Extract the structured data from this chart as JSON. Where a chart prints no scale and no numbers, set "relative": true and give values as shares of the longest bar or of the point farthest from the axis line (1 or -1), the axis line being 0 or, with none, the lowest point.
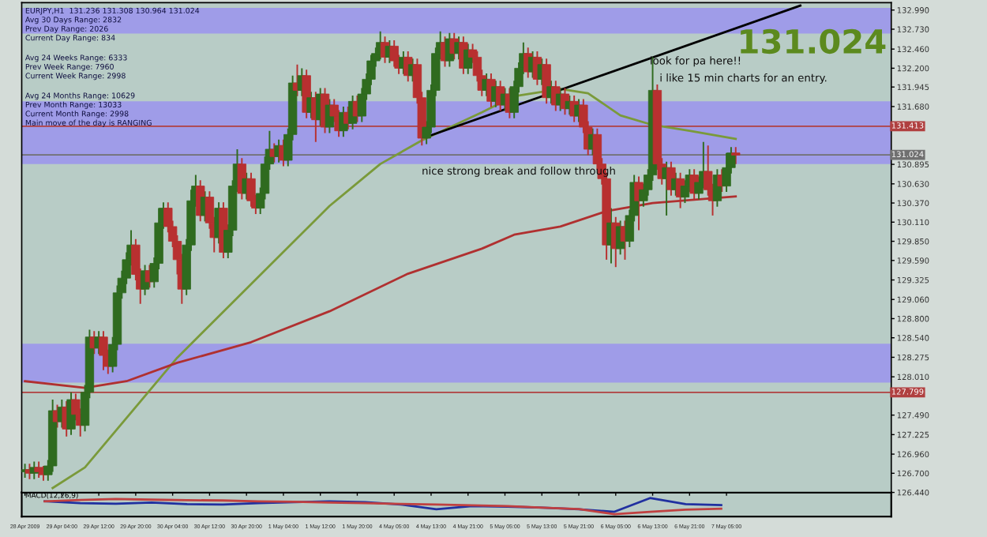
{
  "chart_data": [
    {
      "type": "candlestick",
      "grid": false,
      "ohlc": [
        [
          126.72,
          126.83,
          126.64,
          126.75
        ],
        [
          126.75,
          126.83,
          126.62,
          126.7
        ],
        [
          126.7,
          126.86,
          126.62,
          126.78
        ],
        [
          126.78,
          126.86,
          126.64,
          126.72
        ],
        [
          126.72,
          126.8,
          126.6,
          126.68
        ],
        [
          126.68,
          126.88,
          126.6,
          126.8
        ],
        [
          126.8,
          127.7,
          126.72,
          127.55
        ],
        [
          127.55,
          127.63,
          127.32,
          127.4
        ],
        [
          127.4,
          127.7,
          127.32,
          127.6
        ],
        [
          127.6,
          127.68,
          127.2,
          127.3
        ],
        [
          127.3,
          127.8,
          127.22,
          127.7
        ],
        [
          127.7,
          127.78,
          127.42,
          127.5
        ],
        [
          127.5,
          127.58,
          127.2,
          127.35
        ],
        [
          127.35,
          127.9,
          127.27,
          127.8
        ],
        [
          127.8,
          128.65,
          127.72,
          128.55
        ],
        [
          128.55,
          128.63,
          128.32,
          128.4
        ],
        [
          128.4,
          128.63,
          128.32,
          128.55
        ],
        [
          128.55,
          128.63,
          128.1,
          128.3
        ],
        [
          128.3,
          128.38,
          128.05,
          128.15
        ],
        [
          128.15,
          128.55,
          128.07,
          128.45
        ],
        [
          128.45,
          129.25,
          128.37,
          129.15
        ],
        [
          129.15,
          129.45,
          129.07,
          129.35
        ],
        [
          129.35,
          129.7,
          129.27,
          129.6
        ],
        [
          129.6,
          130.0,
          129.52,
          129.8
        ],
        [
          129.8,
          129.88,
          129.32,
          129.4
        ],
        [
          129.4,
          129.48,
          129.0,
          129.2
        ],
        [
          129.2,
          129.53,
          129.12,
          129.45
        ],
        [
          129.45,
          129.53,
          129.22,
          129.3
        ],
        [
          129.3,
          129.63,
          129.22,
          129.55
        ],
        [
          129.55,
          130.3,
          129.47,
          130.1
        ],
        [
          130.1,
          130.38,
          130.02,
          130.3
        ],
        [
          130.3,
          130.38,
          129.97,
          130.05
        ],
        [
          130.05,
          130.13,
          129.77,
          129.85
        ],
        [
          129.85,
          129.93,
          129.4,
          129.6
        ],
        [
          129.6,
          129.68,
          129.0,
          129.2
        ],
        [
          129.2,
          129.88,
          129.12,
          129.8
        ],
        [
          129.8,
          130.55,
          129.72,
          130.4
        ],
        [
          130.4,
          130.75,
          130.32,
          130.6
        ],
        [
          130.6,
          130.68,
          130.12,
          130.2
        ],
        [
          130.2,
          130.53,
          130.12,
          130.45
        ],
        [
          130.45,
          130.53,
          130.02,
          130.1
        ],
        [
          130.1,
          130.18,
          129.7,
          129.9
        ],
        [
          129.9,
          130.38,
          129.82,
          130.3
        ],
        [
          130.3,
          130.38,
          129.62,
          129.7
        ],
        [
          129.7,
          130.08,
          129.62,
          130.0
        ],
        [
          130.0,
          130.68,
          129.92,
          130.6
        ],
        [
          130.6,
          131.1,
          130.52,
          130.9
        ],
        [
          130.9,
          130.98,
          130.42,
          130.5
        ],
        [
          130.5,
          130.78,
          130.42,
          130.7
        ],
        [
          130.7,
          130.78,
          130.32,
          130.4
        ],
        [
          130.4,
          130.48,
          130.22,
          130.3
        ],
        [
          130.3,
          130.58,
          130.22,
          130.5
        ],
        [
          130.5,
          131.0,
          130.42,
          130.9
        ],
        [
          130.9,
          131.35,
          130.82,
          131.1
        ],
        [
          131.1,
          131.18,
          130.92,
          131.0
        ],
        [
          131.0,
          131.23,
          130.92,
          131.15
        ],
        [
          131.15,
          131.23,
          130.87,
          130.95
        ],
        [
          130.95,
          131.38,
          130.87,
          131.3
        ],
        [
          131.3,
          132.1,
          131.22,
          132.0
        ],
        [
          132.0,
          132.25,
          131.82,
          131.9
        ],
        [
          131.9,
          132.2,
          131.82,
          132.1
        ],
        [
          132.1,
          132.18,
          131.52,
          131.6
        ],
        [
          131.6,
          131.88,
          131.52,
          131.8
        ],
        [
          131.8,
          131.88,
          131.2,
          131.5
        ],
        [
          131.5,
          131.93,
          131.42,
          131.85
        ],
        [
          131.85,
          131.93,
          131.32,
          131.4
        ],
        [
          131.4,
          131.78,
          131.32,
          131.7
        ],
        [
          131.7,
          131.78,
          131.47,
          131.55
        ],
        [
          131.55,
          131.63,
          131.27,
          131.35
        ],
        [
          131.35,
          131.68,
          131.27,
          131.6
        ],
        [
          131.6,
          131.68,
          131.37,
          131.45
        ],
        [
          131.45,
          131.83,
          131.37,
          131.75
        ],
        [
          131.75,
          131.83,
          131.47,
          131.55
        ],
        [
          131.55,
          131.93,
          131.47,
          131.85
        ],
        [
          131.85,
          132.13,
          131.77,
          132.05
        ],
        [
          132.05,
          132.38,
          131.97,
          132.3
        ],
        [
          132.3,
          132.48,
          132.22,
          132.4
        ],
        [
          132.4,
          132.7,
          132.32,
          132.55
        ],
        [
          132.55,
          132.63,
          132.27,
          132.35
        ],
        [
          132.35,
          132.58,
          132.27,
          132.5
        ],
        [
          132.5,
          132.58,
          132.22,
          132.3
        ],
        [
          132.3,
          132.38,
          132.12,
          132.2
        ],
        [
          132.2,
          132.43,
          132.12,
          132.35
        ],
        [
          132.35,
          132.43,
          132.02,
          132.1
        ],
        [
          132.1,
          132.33,
          132.02,
          132.25
        ],
        [
          132.25,
          132.33,
          131.72,
          131.8
        ],
        [
          131.8,
          131.88,
          131.15,
          131.25
        ],
        [
          131.25,
          131.48,
          131.17,
          131.4
        ],
        [
          131.4,
          131.98,
          131.32,
          131.9
        ],
        [
          131.9,
          132.48,
          131.82,
          132.4
        ],
        [
          132.4,
          132.7,
          132.32,
          132.55
        ],
        [
          132.55,
          132.63,
          132.22,
          132.3
        ],
        [
          132.3,
          132.68,
          132.22,
          132.6
        ],
        [
          132.6,
          132.68,
          132.32,
          132.4
        ],
        [
          132.4,
          132.63,
          132.32,
          132.55
        ],
        [
          132.55,
          132.63,
          132.12,
          132.2
        ],
        [
          132.2,
          132.53,
          132.12,
          132.45
        ],
        [
          132.45,
          132.53,
          132.27,
          132.35
        ],
        [
          132.35,
          132.43,
          132.02,
          132.1
        ],
        [
          132.1,
          132.18,
          131.82,
          131.9
        ],
        [
          131.9,
          132.13,
          131.82,
          132.05
        ],
        [
          132.05,
          132.13,
          131.67,
          131.75
        ],
        [
          131.75,
          132.03,
          131.67,
          131.95
        ],
        [
          131.95,
          132.03,
          131.62,
          131.7
        ],
        [
          131.7,
          131.93,
          131.62,
          131.85
        ],
        [
          131.85,
          131.93,
          131.52,
          131.6
        ],
        [
          131.6,
          132.03,
          131.52,
          131.95
        ],
        [
          131.95,
          132.28,
          131.87,
          132.2
        ],
        [
          132.2,
          132.55,
          132.12,
          132.4
        ],
        [
          132.4,
          132.48,
          132.07,
          132.15
        ],
        [
          132.15,
          132.43,
          132.07,
          132.35
        ],
        [
          132.35,
          132.43,
          131.97,
          132.05
        ],
        [
          132.05,
          132.33,
          131.97,
          132.25
        ],
        [
          132.25,
          132.33,
          131.72,
          131.8
        ],
        [
          131.8,
          132.03,
          131.72,
          131.95
        ],
        [
          131.95,
          132.03,
          131.62,
          131.7
        ],
        [
          131.7,
          131.93,
          131.62,
          131.85
        ],
        [
          131.85,
          131.93,
          131.57,
          131.65
        ],
        [
          131.65,
          131.83,
          131.57,
          131.75
        ],
        [
          131.75,
          131.83,
          131.47,
          131.55
        ],
        [
          131.55,
          131.78,
          131.47,
          131.7
        ],
        [
          131.7,
          131.78,
          131.32,
          131.4
        ],
        [
          131.4,
          131.48,
          131.02,
          131.1
        ],
        [
          131.1,
          131.38,
          131.02,
          131.3
        ],
        [
          131.3,
          131.38,
          130.82,
          130.9
        ],
        [
          130.9,
          130.98,
          130.62,
          130.7
        ],
        [
          130.7,
          130.78,
          129.6,
          129.8
        ],
        [
          129.8,
          130.3,
          129.55,
          130.1
        ],
        [
          130.1,
          130.18,
          129.5,
          129.75
        ],
        [
          129.75,
          130.13,
          129.67,
          130.05
        ],
        [
          130.05,
          130.13,
          129.6,
          129.85
        ],
        [
          129.85,
          130.28,
          129.77,
          130.2
        ],
        [
          130.2,
          130.75,
          130.12,
          130.65
        ],
        [
          130.65,
          130.73,
          130.0,
          130.4
        ],
        [
          130.4,
          130.63,
          130.32,
          130.55
        ],
        [
          130.55,
          130.83,
          130.47,
          130.75
        ],
        [
          130.75,
          132.35,
          130.67,
          131.9
        ],
        [
          131.9,
          131.98,
          130.82,
          130.9
        ],
        [
          130.9,
          130.98,
          130.62,
          130.7
        ],
        [
          130.7,
          130.93,
          130.2,
          130.85
        ],
        [
          130.85,
          130.93,
          130.47,
          130.55
        ],
        [
          130.55,
          130.78,
          130.47,
          130.7
        ],
        [
          130.7,
          130.78,
          130.3,
          130.45
        ],
        [
          130.45,
          130.68,
          130.37,
          130.6
        ],
        [
          130.6,
          130.83,
          130.52,
          130.75
        ],
        [
          130.75,
          130.83,
          130.42,
          130.5
        ],
        [
          130.5,
          130.73,
          130.42,
          130.65
        ],
        [
          130.65,
          131.2,
          130.57,
          130.8
        ],
        [
          130.8,
          131.15,
          130.47,
          130.55
        ],
        [
          130.55,
          130.63,
          130.2,
          130.4
        ],
        [
          130.4,
          130.83,
          130.32,
          130.75
        ],
        [
          130.75,
          130.83,
          130.52,
          130.6
        ],
        [
          130.6,
          131.05,
          130.52,
          130.85
        ],
        [
          130.85,
          131.13,
          130.77,
          131.05
        ],
        [
          131.05,
          131.13,
          130.9,
          131.02
        ],
        null,
        null,
        null,
        null,
        null,
        null,
        null,
        null,
        null,
        null,
        null,
        null,
        null,
        null,
        null,
        null,
        null,
        null,
        null,
        null,
        null,
        null,
        null,
        null,
        null,
        null,
        null,
        null,
        null,
        null,
        null,
        null,
        null
      ],
      "series": [
        {
          "type": "line",
          "color": "#7a9a3a",
          "values": [
            null,
            null,
            null,
            null,
            null,
            null,
            126.5,
            null,
            null,
            null,
            null,
            null,
            null,
            126.78,
            null,
            null,
            null,
            null,
            null,
            null,
            null,
            null,
            null,
            null,
            null,
            null,
            null,
            null,
            null,
            null,
            null,
            null,
            null,
            128.27,
            null,
            null,
            null,
            null,
            null,
            null,
            null,
            null,
            null,
            null,
            null,
            null,
            null,
            null,
            null,
            129.27,
            null,
            null,
            null,
            null,
            null,
            null,
            null,
            null,
            null,
            null,
            null,
            null,
            null,
            null,
            null,
            null,
            130.33,
            null,
            null,
            null,
            null,
            null,
            null,
            null,
            null,
            null,
            null,
            130.9,
            null,
            null,
            null,
            null,
            null,
            null,
            null,
            null,
            131.22,
            null,
            null,
            null,
            null,
            null,
            null,
            null,
            null,
            null,
            null,
            null,
            null,
            131.6,
            null,
            null,
            null,
            null,
            null,
            null,
            131.82,
            null,
            null,
            null,
            null,
            null,
            null,
            null,
            null,
            null,
            131.92,
            null,
            null,
            null,
            null,
            null,
            131.86,
            null,
            null,
            null,
            null,
            null,
            null,
            131.56,
            null,
            null,
            null,
            null,
            null,
            null,
            131.43,
            null,
            null,
            null,
            null,
            null,
            null,
            null,
            131.35,
            null,
            null,
            null,
            null,
            null,
            null,
            null,
            null,
            null,
            131.24,
            null,
            null,
            null,
            null,
            null,
            null,
            null,
            null,
            null,
            null,
            null,
            null,
            null,
            null,
            null,
            null,
            null,
            null,
            null,
            null,
            null,
            null,
            null,
            null,
            null,
            null,
            null,
            null,
            null,
            null,
            null,
            null,
            null
          ]
        },
        {
          "type": "line",
          "color": "#b03030",
          "values": [
            127.95,
            null,
            null,
            null,
            null,
            null,
            null,
            null,
            null,
            null,
            null,
            null,
            null,
            127.86,
            null,
            null,
            null,
            null,
            null,
            null,
            null,
            null,
            127.95,
            null,
            null,
            null,
            null,
            null,
            null,
            null,
            null,
            null,
            null,
            128.2,
            null,
            null,
            null,
            null,
            null,
            null,
            null,
            null,
            null,
            null,
            null,
            null,
            null,
            null,
            null,
            128.48,
            null,
            null,
            null,
            null,
            null,
            null,
            null,
            null,
            null,
            null,
            null,
            null,
            null,
            null,
            null,
            null,
            128.9,
            null,
            null,
            null,
            null,
            null,
            null,
            null,
            null,
            null,
            null,
            null,
            null,
            null,
            null,
            null,
            null,
            129.41,
            null,
            null,
            null,
            null,
            null,
            null,
            null,
            null,
            null,
            null,
            null,
            null,
            null,
            null,
            null,
            129.75,
            null,
            null,
            null,
            null,
            null,
            null,
            129.94,
            null,
            null,
            null,
            null,
            null,
            null,
            null,
            null,
            null,
            130.05,
            null,
            null,
            null,
            null,
            null,
            null,
            null,
            null,
            null,
            130.26,
            null,
            null,
            null,
            null,
            null,
            null,
            null,
            null,
            null,
            130.37,
            null,
            null,
            null,
            null,
            null,
            null,
            null,
            null,
            null,
            null,
            null,
            null,
            null,
            null,
            null,
            null,
            null,
            130.46,
            null,
            null,
            null,
            null,
            null,
            null,
            null,
            null,
            null,
            null,
            null,
            null,
            null,
            null,
            null,
            null,
            null,
            null,
            null,
            null,
            null,
            null,
            null,
            null,
            null,
            null,
            null,
            null,
            null,
            null,
            null,
            null,
            null
          ]
        },
        {
          "type": "line",
          "color": "#000000",
          "values": [
            null,
            null,
            null,
            null,
            null,
            null,
            null,
            null,
            null,
            null,
            null,
            null,
            null,
            null,
            null,
            null,
            null,
            null,
            null,
            null,
            null,
            null,
            null,
            null,
            null,
            null,
            null,
            null,
            null,
            null,
            null,
            null,
            null,
            null,
            null,
            null,
            null,
            null,
            null,
            null,
            null,
            null,
            null,
            null,
            null,
            null,
            null,
            null,
            null,
            null,
            null,
            null,
            null,
            null,
            null,
            null,
            null,
            null,
            null,
            null,
            null,
            null,
            null,
            null,
            null,
            null,
            null,
            null,
            null,
            null,
            null,
            null,
            null,
            null,
            null,
            null,
            null,
            null,
            null,
            null,
            null,
            null,
            null,
            null,
            null,
            null,
            null,
            null,
            131.29,
            null,
            null,
            null,
            null,
            null,
            null,
            null,
            null,
            null,
            null,
            null,
            null,
            null,
            null,
            null,
            null,
            null,
            null,
            null,
            null,
            null,
            null,
            null,
            null,
            null,
            null,
            null,
            null,
            null,
            null,
            null,
            null,
            null,
            null,
            null,
            null,
            null,
            null,
            null,
            null,
            null,
            null,
            null,
            null,
            null,
            null,
            null,
            null,
            null,
            null,
            null,
            null,
            null,
            null,
            null,
            null,
            null,
            null,
            null,
            null,
            null,
            null,
            null,
            null,
            null,
            null,
            null,
            null,
            null,
            null,
            null,
            null,
            null,
            null,
            null,
            null,
            null,
            null,
            null,
            133.05,
            null,
            null,
            null,
            null,
            null,
            null,
            null,
            null,
            null,
            null,
            null,
            null,
            null,
            null,
            null,
            null,
            null,
            null,
            null
          ]
        }
      ],
      "categories": [
        "28 Apr 2009",
        null,
        null,
        null,
        null,
        null,
        null,
        null,
        "29 Apr 04:00",
        null,
        null,
        null,
        null,
        null,
        null,
        null,
        "29 Apr 12:00",
        null,
        null,
        null,
        null,
        null,
        null,
        null,
        "29 Apr 20:00",
        null,
        null,
        null,
        null,
        null,
        null,
        null,
        "30 Apr 04:00",
        null,
        null,
        null,
        null,
        null,
        null,
        null,
        "30 Apr 12:00",
        null,
        null,
        null,
        null,
        null,
        null,
        null,
        "30 Apr 20:00",
        null,
        null,
        null,
        null,
        null,
        null,
        null,
        "1 May 04:00",
        null,
        null,
        null,
        null,
        null,
        null,
        null,
        "1 May 12:00",
        null,
        null,
        null,
        null,
        null,
        null,
        null,
        "1 May 20:00",
        null,
        null,
        null,
        null,
        null,
        null,
        null,
        "4 May 05:00",
        null,
        null,
        null,
        null,
        null,
        null,
        null,
        "4 May 13:00",
        null,
        null,
        null,
        null,
        null,
        null,
        null,
        "4 May 21:00",
        null,
        null,
        null,
        null,
        null,
        null,
        null,
        "5 May 05:00",
        null,
        null,
        null,
        null,
        null,
        null,
        null,
        "5 May 13:00",
        null,
        null,
        null,
        null,
        null,
        null,
        null,
        "5 May 21:00",
        null,
        null,
        null,
        null,
        null,
        null,
        null,
        "6 May 05:00",
        null,
        null,
        null,
        null,
        null,
        null,
        null,
        "6 May 13:00",
        null,
        null,
        null,
        null,
        null,
        null,
        null,
        "6 May 21:00",
        null,
        null,
        null,
        null,
        null,
        null,
        null,
        "7 May 05:00",
        null,
        null,
        null,
        null,
        null,
        null,
        null,
        null,
        null,
        null,
        null,
        null,
        null,
        null,
        null,
        null,
        null,
        null,
        null,
        null,
        null,
        null,
        null,
        null,
        null,
        null,
        null,
        null,
        null,
        null,
        null,
        null,
        null,
        null,
        null
      ],
      "ylim": [
        126.44,
        133.09
      ],
      "yticks": [
        {
          "value": 126.44,
          "label": "126.440"
        },
        {
          "value": 126.7,
          "label": "126.700"
        },
        {
          "value": 126.96,
          "label": "126.960"
        },
        {
          "value": 127.225,
          "label": "127.225"
        },
        {
          "value": 127.49,
          "label": "127.490"
        },
        {
          "value": 128.01,
          "label": "128.010"
        },
        {
          "value": 128.275,
          "label": "128.275"
        },
        {
          "value": 128.54,
          "label": "128.540"
        },
        {
          "value": 128.8,
          "label": "128.800"
        },
        {
          "value": 129.06,
          "label": "129.060"
        },
        {
          "value": 129.325,
          "label": "129.325"
        },
        {
          "value": 129.59,
          "label": "129.590"
        },
        {
          "value": 129.85,
          "label": "129.850"
        },
        {
          "value": 130.11,
          "label": "130.110"
        },
        {
          "value": 130.37,
          "label": "130.370"
        },
        {
          "value": 130.63,
          "label": "130.630"
        },
        {
          "value": 130.895,
          "label": "130.895"
        },
        {
          "value": 131.68,
          "label": "131.680"
        },
        {
          "value": 131.945,
          "label": "131.945"
        },
        {
          "value": 132.2,
          "label": "132.200"
        },
        {
          "value": 132.46,
          "label": "132.460"
        },
        {
          "value": 132.73,
          "label": "132.730"
        },
        {
          "value": 132.99,
          "label": "132.990"
        }
      ],
      "bands": [
        {
          "axis": "y",
          "from": 132.67,
          "to": 133.02,
          "color": "#9f9ce8"
        },
        {
          "axis": "y",
          "from": 130.9,
          "to": 131.75,
          "color": "#9f9ce8"
        },
        {
          "axis": "y",
          "from": 127.93,
          "to": 128.46,
          "color": "#9f9ce8"
        }
      ],
      "ref_lines": [
        {
          "axis": "y",
          "value": 131.413,
          "label": "131.413",
          "color": "#b04040"
        },
        {
          "axis": "y",
          "value": 127.799,
          "label": "127.799",
          "color": "#b04040"
        },
        {
          "axis": "y",
          "value": 131.024,
          "label": "131.024",
          "color": "#707070"
        }
      ],
      "annotations": [
        "EURJPY,H1  131.236 131.308 130.964 131.024",
        "Avg 30 Days Range: 2832",
        "Prev Day Range: 2026",
        "Current Day Range: 834",
        "Avg 24 Weeks Range: 6333",
        "Prev Week Range: 7960",
        "Current Week Range: 2998",
        "Avg 24 Months Range: 10629",
        "Prev Month Range: 13033",
        "Current Month Range: 2998",
        "Main move of the day is RANGING",
        "nice strong break and follow through",
        "look for pa here!!",
        "i like 15 min charts for an entry.",
        "131.024"
      ]
    },
    {
      "type": "line",
      "relative": true,
      "title": "MACD(12,26,9)",
      "categories": [
        null,
        null,
        null,
        null,
        null,
        null,
        null,
        null,
        null,
        null,
        null,
        null,
        null,
        null,
        null,
        null,
        null,
        null,
        null,
        null
      ],
      "series": [
        {
          "color": "#2030a0",
          "values": [
            0.8,
            0.68,
            0.65,
            0.72,
            0.62,
            0.6,
            0.68,
            0.75,
            0.8,
            0.75,
            0.6,
            0.3,
            0.5,
            0.47,
            0.4,
            0.3,
            0.15,
            1.0,
            0.62,
            0.56
          ]
        },
        {
          "color": "#c04040",
          "values": [
            0.8,
            0.88,
            0.94,
            0.9,
            0.87,
            0.85,
            0.8,
            0.77,
            0.72,
            0.69,
            0.64,
            0.6,
            0.55,
            0.5,
            0.4,
            0.32,
            0.0,
            0.15,
            0.28,
            0.34
          ]
        }
      ]
    }
  ]
}
